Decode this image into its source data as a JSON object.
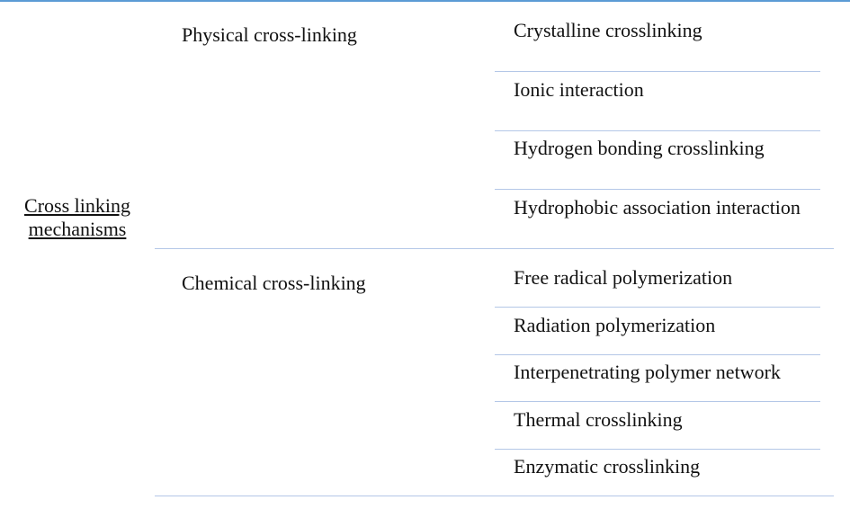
{
  "root": "Cross linking mechanisms",
  "groups": [
    {
      "label": "Physical cross-linking",
      "items": [
        "Crystalline crosslinking",
        "Ionic interaction",
        "Hydrogen bonding crosslinking",
        "Hydrophobic association interaction"
      ]
    },
    {
      "label": "Chemical cross-linking",
      "items": [
        "Free radical polymerization",
        "Radiation polymerization",
        "Interpenetrating polymer network",
        "Thermal crosslinking",
        "Enzymatic crosslinking"
      ]
    }
  ]
}
